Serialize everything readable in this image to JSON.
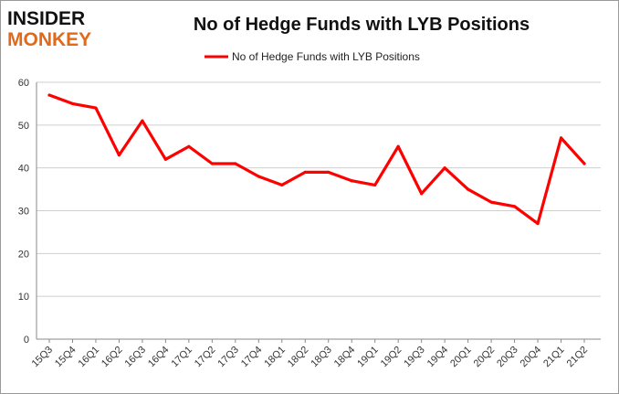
{
  "header": {
    "logo_line1": "INSIDER",
    "logo_line2": "MONKEY",
    "title": "No of Hedge Funds with LYB Positions"
  },
  "colors": {
    "series": "#ff0000",
    "logo_primary": "#111111",
    "logo_accent": "#e06a1a",
    "grid": "#cfcfcf"
  },
  "chart_data": {
    "type": "line",
    "title": "No of Hedge Funds with LYB Positions",
    "xlabel": "",
    "ylabel": "",
    "ylim": [
      0,
      60
    ],
    "yticks": [
      0,
      10,
      20,
      30,
      40,
      50,
      60
    ],
    "grid": true,
    "legend_position": "top-center",
    "categories": [
      "15Q3",
      "15Q4",
      "16Q1",
      "16Q2",
      "16Q3",
      "16Q4",
      "17Q1",
      "17Q2",
      "17Q3",
      "17Q4",
      "18Q1",
      "18Q2",
      "18Q3",
      "18Q4",
      "19Q1",
      "19Q2",
      "19Q3",
      "19Q4",
      "20Q1",
      "20Q2",
      "20Q3",
      "20Q4",
      "21Q1",
      "21Q2"
    ],
    "series": [
      {
        "name": "No of Hedge Funds with LYB Positions",
        "color": "#ff0000",
        "values": [
          57,
          55,
          54,
          43,
          51,
          42,
          45,
          41,
          41,
          38,
          36,
          39,
          39,
          37,
          36,
          45,
          34,
          40,
          35,
          32,
          31,
          27,
          47,
          41
        ]
      }
    ]
  }
}
